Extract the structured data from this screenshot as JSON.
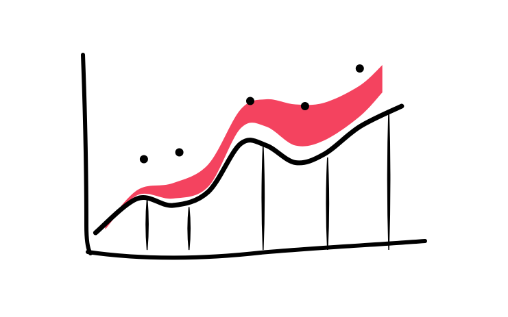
{
  "colors": {
    "background": "#ffffff",
    "ink": "#000000",
    "accent": "#f4435f"
  },
  "chart_data": {
    "type": "line",
    "style": "hand-drawn sketch",
    "title": "",
    "xlabel": "",
    "ylabel": "",
    "grid": false,
    "legend": "none",
    "axes_tick_labels": false,
    "xlim": [
      0,
      10
    ],
    "ylim": [
      0,
      10
    ],
    "line": {
      "x": [
        0.2,
        1.5,
        2.6,
        3.7,
        4.7,
        5.5,
        6.4,
        7.3,
        8.4,
        9.7
      ],
      "y": [
        1.0,
        3.0,
        2.6,
        3.4,
        6.2,
        6.1,
        5.1,
        5.6,
        7.2,
        8.4
      ]
    },
    "band": {
      "x": [
        0.5,
        1.5,
        2.6,
        3.7,
        4.7,
        5.5,
        6.4,
        7.3,
        8.4,
        9.1
      ],
      "lower": [
        1.2,
        3.2,
        3.0,
        3.7,
        7.1,
        7.2,
        6.1,
        6.4,
        7.8,
        9.2
      ],
      "upper": [
        1.4,
        3.5,
        3.9,
        5.0,
        8.2,
        8.8,
        8.5,
        8.6,
        9.6,
        10.8
      ]
    },
    "stems": {
      "x": [
        1.8,
        3.1,
        5.4,
        7.4,
        9.3
      ],
      "y_bottom": [
        0,
        0,
        0,
        0,
        0
      ],
      "y_top": [
        3.0,
        2.5,
        6.1,
        5.4,
        8.2
      ]
    },
    "points": {
      "x": [
        1.7,
        2.8,
        5.0,
        6.7,
        8.4
      ],
      "y": [
        5.3,
        5.7,
        8.7,
        8.4,
        10.6
      ]
    }
  }
}
